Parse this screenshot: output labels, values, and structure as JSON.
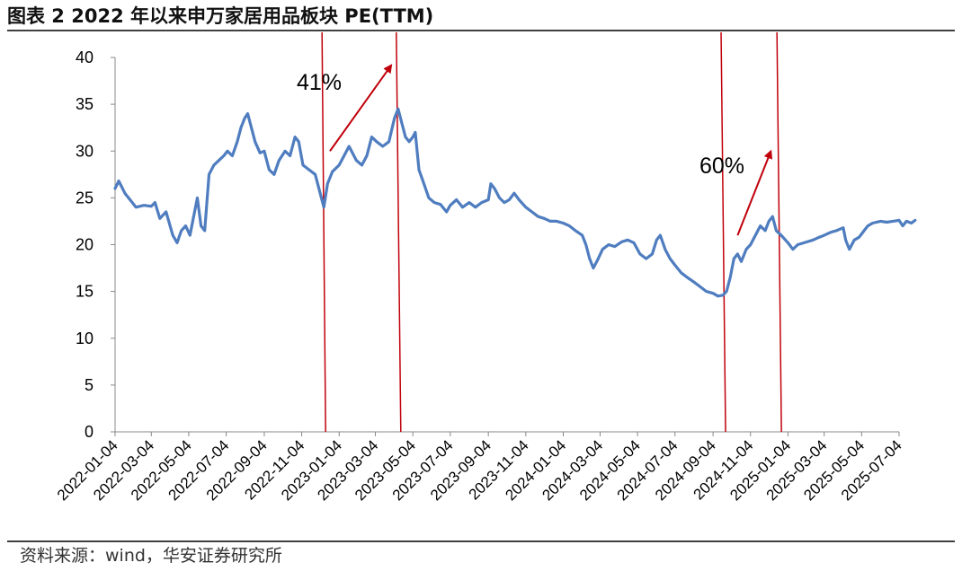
{
  "title": "图表 2 2022 年以来申万家居用品板块 PE(TTM)",
  "source": "资料来源：wind，华安证券研究所",
  "colors": {
    "line": "#4f7dbf",
    "annotation": "#c0000b",
    "axis": "#888888",
    "text": "#000000"
  },
  "chart_data": {
    "type": "line",
    "title": "",
    "xlabel": "",
    "ylabel": "",
    "ylim": [
      0,
      40
    ],
    "yticks": [
      0,
      5,
      10,
      15,
      20,
      25,
      30,
      35,
      40
    ],
    "x_tick_labels": [
      "2022-01-04",
      "2022-03-04",
      "2022-05-04",
      "2022-07-04",
      "2022-09-04",
      "2022-11-04",
      "2023-01-04",
      "2023-03-04",
      "2023-05-04",
      "2023-07-04",
      "2023-09-04",
      "2023-11-04",
      "2024-01-04",
      "2024-03-04",
      "2024-05-04",
      "2024-07-04",
      "2024-09-04",
      "2024-11-04",
      "2025-01-04",
      "2025-03-04",
      "2025-05-04",
      "2025-07-04"
    ],
    "grid": false,
    "legend": "none",
    "series": [
      {
        "points": [
          [
            "2022-01-04",
            26.0
          ],
          [
            "2022-01-10",
            26.8
          ],
          [
            "2022-01-20",
            25.5
          ],
          [
            "2022-02-07",
            24.0
          ],
          [
            "2022-02-20",
            24.2
          ],
          [
            "2022-03-04",
            24.1
          ],
          [
            "2022-03-10",
            24.5
          ],
          [
            "2022-03-18",
            22.8
          ],
          [
            "2022-03-28",
            23.5
          ],
          [
            "2022-04-08",
            21.0
          ],
          [
            "2022-04-15",
            20.2
          ],
          [
            "2022-04-22",
            21.5
          ],
          [
            "2022-04-29",
            22.0
          ],
          [
            "2022-05-06",
            21.0
          ],
          [
            "2022-05-12",
            23.0
          ],
          [
            "2022-05-18",
            25.0
          ],
          [
            "2022-05-24",
            22.0
          ],
          [
            "2022-05-30",
            21.5
          ],
          [
            "2022-06-06",
            27.5
          ],
          [
            "2022-06-14",
            28.5
          ],
          [
            "2022-06-22",
            29.0
          ],
          [
            "2022-06-30",
            29.5
          ],
          [
            "2022-07-06",
            30.0
          ],
          [
            "2022-07-14",
            29.5
          ],
          [
            "2022-07-22",
            31.0
          ],
          [
            "2022-07-28",
            32.5
          ],
          [
            "2022-08-03",
            33.5
          ],
          [
            "2022-08-08",
            34.0
          ],
          [
            "2022-08-14",
            32.5
          ],
          [
            "2022-08-20",
            31.0
          ],
          [
            "2022-08-28",
            29.8
          ],
          [
            "2022-09-04",
            30.0
          ],
          [
            "2022-09-12",
            28.0
          ],
          [
            "2022-09-20",
            27.5
          ],
          [
            "2022-09-28",
            29.0
          ],
          [
            "2022-10-08",
            30.0
          ],
          [
            "2022-10-16",
            29.5
          ],
          [
            "2022-10-24",
            31.5
          ],
          [
            "2022-10-30",
            31.0
          ],
          [
            "2022-11-06",
            28.5
          ],
          [
            "2022-11-16",
            28.0
          ],
          [
            "2022-11-26",
            27.5
          ],
          [
            "2022-12-04",
            25.5
          ],
          [
            "2022-12-10",
            24.0
          ],
          [
            "2022-12-16",
            26.5
          ],
          [
            "2022-12-24",
            27.8
          ],
          [
            "2023-01-04",
            28.5
          ],
          [
            "2023-01-12",
            29.5
          ],
          [
            "2023-01-20",
            30.5
          ],
          [
            "2023-02-01",
            29.0
          ],
          [
            "2023-02-10",
            28.5
          ],
          [
            "2023-02-18",
            29.5
          ],
          [
            "2023-02-26",
            31.5
          ],
          [
            "2023-03-06",
            31.0
          ],
          [
            "2023-03-16",
            30.5
          ],
          [
            "2023-03-26",
            31.0
          ],
          [
            "2023-04-04",
            33.5
          ],
          [
            "2023-04-10",
            34.5
          ],
          [
            "2023-04-16",
            33.0
          ],
          [
            "2023-04-22",
            31.5
          ],
          [
            "2023-04-28",
            31.0
          ],
          [
            "2023-05-04",
            31.5
          ],
          [
            "2023-05-08",
            32.0
          ],
          [
            "2023-05-14",
            28.0
          ],
          [
            "2023-05-22",
            26.5
          ],
          [
            "2023-05-30",
            25.0
          ],
          [
            "2023-06-08",
            24.5
          ],
          [
            "2023-06-18",
            24.3
          ],
          [
            "2023-06-28",
            23.5
          ],
          [
            "2023-07-04",
            24.2
          ],
          [
            "2023-07-14",
            24.8
          ],
          [
            "2023-07-24",
            24.0
          ],
          [
            "2023-08-04",
            24.5
          ],
          [
            "2023-08-14",
            24.0
          ],
          [
            "2023-08-24",
            24.5
          ],
          [
            "2023-09-04",
            24.8
          ],
          [
            "2023-09-08",
            26.5
          ],
          [
            "2023-09-14",
            26.0
          ],
          [
            "2023-09-22",
            25.0
          ],
          [
            "2023-09-30",
            24.5
          ],
          [
            "2023-10-08",
            24.8
          ],
          [
            "2023-10-16",
            25.5
          ],
          [
            "2023-10-24",
            24.8
          ],
          [
            "2023-11-04",
            24.0
          ],
          [
            "2023-11-14",
            23.5
          ],
          [
            "2023-11-24",
            23.0
          ],
          [
            "2023-12-04",
            22.8
          ],
          [
            "2023-12-14",
            22.5
          ],
          [
            "2023-12-24",
            22.5
          ],
          [
            "2024-01-04",
            22.3
          ],
          [
            "2024-01-14",
            22.0
          ],
          [
            "2024-01-24",
            21.5
          ],
          [
            "2024-02-04",
            21.0
          ],
          [
            "2024-02-10",
            20.0
          ],
          [
            "2024-02-16",
            18.5
          ],
          [
            "2024-02-22",
            17.5
          ],
          [
            "2024-03-01",
            18.5
          ],
          [
            "2024-03-08",
            19.5
          ],
          [
            "2024-03-18",
            20.0
          ],
          [
            "2024-03-28",
            19.8
          ],
          [
            "2024-04-08",
            20.3
          ],
          [
            "2024-04-18",
            20.5
          ],
          [
            "2024-04-28",
            20.2
          ],
          [
            "2024-05-08",
            19.0
          ],
          [
            "2024-05-18",
            18.5
          ],
          [
            "2024-05-28",
            19.0
          ],
          [
            "2024-06-04",
            20.5
          ],
          [
            "2024-06-10",
            21.0
          ],
          [
            "2024-06-18",
            19.5
          ],
          [
            "2024-06-26",
            18.5
          ],
          [
            "2024-07-04",
            17.8
          ],
          [
            "2024-07-14",
            17.0
          ],
          [
            "2024-07-24",
            16.5
          ],
          [
            "2024-08-04",
            16.0
          ],
          [
            "2024-08-14",
            15.5
          ],
          [
            "2024-08-24",
            15.0
          ],
          [
            "2024-09-04",
            14.8
          ],
          [
            "2024-09-12",
            14.5
          ],
          [
            "2024-09-20",
            14.6
          ],
          [
            "2024-09-26",
            15.0
          ],
          [
            "2024-10-02",
            16.5
          ],
          [
            "2024-10-08",
            18.5
          ],
          [
            "2024-10-14",
            19.0
          ],
          [
            "2024-10-20",
            18.2
          ],
          [
            "2024-10-28",
            19.5
          ],
          [
            "2024-11-04",
            20.0
          ],
          [
            "2024-11-12",
            21.0
          ],
          [
            "2024-11-20",
            22.0
          ],
          [
            "2024-11-28",
            21.5
          ],
          [
            "2024-12-04",
            22.5
          ],
          [
            "2024-12-10",
            23.0
          ],
          [
            "2024-12-16",
            21.5
          ],
          [
            "2024-12-24",
            21.0
          ],
          [
            "2025-01-04",
            20.2
          ],
          [
            "2025-01-12",
            19.5
          ],
          [
            "2025-01-20",
            20.0
          ],
          [
            "2025-02-04",
            20.3
          ],
          [
            "2025-02-14",
            20.5
          ],
          [
            "2025-02-24",
            20.8
          ],
          [
            "2025-03-04",
            21.0
          ],
          [
            "2025-03-14",
            21.3
          ],
          [
            "2025-03-24",
            21.5
          ],
          [
            "2025-04-04",
            21.8
          ],
          [
            "2025-04-08",
            20.5
          ],
          [
            "2025-04-14",
            19.5
          ],
          [
            "2025-04-22",
            20.5
          ],
          [
            "2025-04-30",
            20.8
          ],
          [
            "2025-05-08",
            21.5
          ],
          [
            "2025-05-14",
            22.0
          ],
          [
            "2025-05-22",
            22.3
          ],
          [
            "2025-06-04",
            22.5
          ],
          [
            "2025-06-14",
            22.4
          ],
          [
            "2025-06-24",
            22.5
          ],
          [
            "2025-07-04",
            22.6
          ],
          [
            "2025-07-10",
            22.0
          ],
          [
            "2025-07-16",
            22.5
          ],
          [
            "2025-07-24",
            22.3
          ],
          [
            "2025-07-30",
            22.6
          ]
        ]
      }
    ],
    "annotations": [
      {
        "text": "41%"
      },
      {
        "text": "60%"
      }
    ],
    "vertical_lines": [
      "2022-12-10",
      "2023-04-10",
      "2024-09-20",
      "2024-12-20"
    ],
    "arrows": [
      {
        "from": [
          "2022-12-20",
          30.0
        ],
        "to": [
          "2023-03-28",
          39.0
        ],
        "label_index": 0
      },
      {
        "from": [
          "2024-10-14",
          21.0
        ],
        "to": [
          "2024-12-06",
          29.8
        ],
        "label_index": 1
      }
    ]
  }
}
